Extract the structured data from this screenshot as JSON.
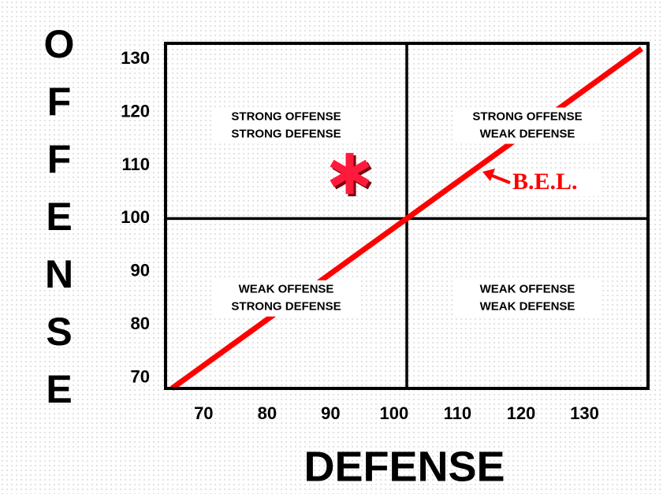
{
  "chart_data": {
    "type": "scatter",
    "xlabel": "DEFENSE",
    "ylabel": "OFFENSE",
    "xlim": [
      64,
      140
    ],
    "ylim": [
      68,
      133
    ],
    "xticks": [
      70,
      80,
      90,
      100,
      110,
      120,
      130
    ],
    "yticks": [
      70,
      80,
      90,
      100,
      110,
      120,
      130
    ],
    "dividers": {
      "x": 102,
      "y": 100
    },
    "quadrants": [
      [
        "STRONG OFFENSE",
        "STRONG DEFENSE"
      ],
      [
        "STRONG OFFENSE",
        "WEAK DEFENSE"
      ],
      [
        "WEAK OFFENSE",
        "STRONG DEFENSE"
      ],
      [
        "WEAK OFFENSE",
        "WEAK DEFENSE"
      ]
    ],
    "series": [
      {
        "name": "B.E.L.",
        "kind": "line",
        "color": "#ff0000",
        "x": [
          65,
          139
        ],
        "y": [
          68,
          132
        ]
      },
      {
        "kind": "point",
        "color": "#ff1a3c",
        "x": [
          93
        ],
        "y": [
          108.5
        ]
      }
    ]
  }
}
